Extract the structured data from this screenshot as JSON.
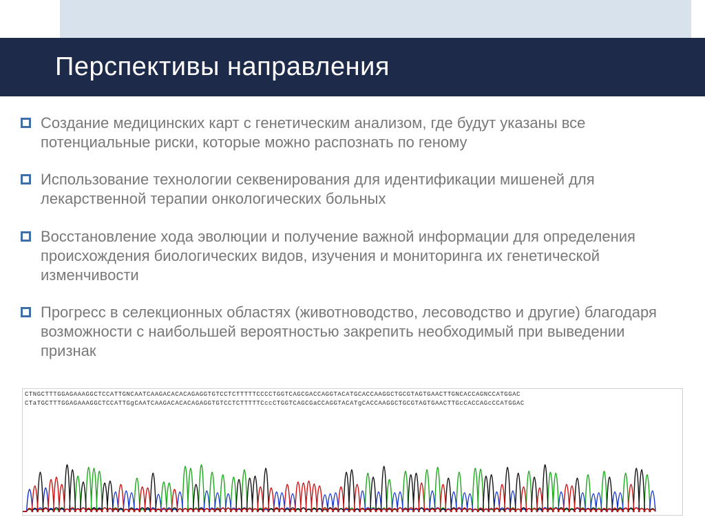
{
  "title": "Перспективы направления",
  "bullets": [
    "Создание медицинских карт с генетическим анализом, где будут указаны все потенциальные риски, которые можно распознать по геному",
    "Использование технологии секвенирования для идентификации мишеней для лекарственной терапии онкологических больных",
    "Восстановление хода эволюции и получение важной информации для определения происхождения биологических видов, изучения и мониторинга их генетической изменчивости",
    "Прогресс в селекционных областях (животноводство, лесоводство и другие) благодаря возможности с наибольшей вероятностью закрепить необходимый при выведении признак"
  ],
  "chromatogram": {
    "seq_line1": "CTNGCTTTGGAGAAAGGCTCCATTGNCAATCAAGACACACAGAGGTGTCCTCTTTTTCCCCTGGTCAGCGACCAGGTACATGCACCAAGGCTGCGTAGTGAACTTGNCACCAGNCCATGGAC",
    "seq_line2": "CTaTGCTTTGGAGAAAGGCTCCATTGgCAATCAAGACACACAGAGGTGTCCTCTTTTTCccCTGGTCAGCGaCCAGGTACATgCACCAAGGCTGCGTAGTGAACTTGcCACCAGcCCATGGAC",
    "trace_colors": {
      "A": "#1aa81a",
      "C": "#1030d0",
      "G": "#111111",
      "T": "#d01010"
    },
    "background": "#ffffff",
    "border_color": "#cfcfcf",
    "peaks": [
      {
        "b": "C",
        "h": 0.45
      },
      {
        "b": "T",
        "h": 0.52
      },
      {
        "b": "G",
        "h": 0.8
      },
      {
        "b": "C",
        "h": 0.48
      },
      {
        "b": "T",
        "h": 0.65
      },
      {
        "b": "T",
        "h": 0.7
      },
      {
        "b": "T",
        "h": 0.55
      },
      {
        "b": "G",
        "h": 0.95
      },
      {
        "b": "G",
        "h": 0.85
      },
      {
        "b": "A",
        "h": 0.72
      },
      {
        "b": "G",
        "h": 0.6
      },
      {
        "b": "A",
        "h": 0.9
      },
      {
        "b": "A",
        "h": 0.88
      },
      {
        "b": "A",
        "h": 0.82
      },
      {
        "b": "G",
        "h": 0.58
      },
      {
        "b": "G",
        "h": 0.62
      },
      {
        "b": "C",
        "h": 0.4
      },
      {
        "b": "T",
        "h": 0.55
      },
      {
        "b": "C",
        "h": 0.42
      },
      {
        "b": "C",
        "h": 0.38
      },
      {
        "b": "A",
        "h": 0.68
      },
      {
        "b": "T",
        "h": 0.5
      },
      {
        "b": "T",
        "h": 0.48
      },
      {
        "b": "G",
        "h": 0.78
      },
      {
        "b": "C",
        "h": 0.35
      },
      {
        "b": "A",
        "h": 0.6
      },
      {
        "b": "A",
        "h": 0.58
      },
      {
        "b": "T",
        "h": 0.45
      },
      {
        "b": "C",
        "h": 0.4
      },
      {
        "b": "A",
        "h": 0.92
      },
      {
        "b": "A",
        "h": 0.88
      },
      {
        "b": "G",
        "h": 0.55
      },
      {
        "b": "A",
        "h": 0.95
      },
      {
        "b": "C",
        "h": 0.42
      },
      {
        "b": "A",
        "h": 0.8
      },
      {
        "b": "C",
        "h": 0.38
      },
      {
        "b": "A",
        "h": 0.75
      },
      {
        "b": "C",
        "h": 0.36
      },
      {
        "b": "A",
        "h": 0.7
      },
      {
        "b": "G",
        "h": 0.65
      },
      {
        "b": "A",
        "h": 0.85
      },
      {
        "b": "G",
        "h": 0.68
      },
      {
        "b": "G",
        "h": 0.72
      },
      {
        "b": "T",
        "h": 0.5
      },
      {
        "b": "G",
        "h": 0.88
      },
      {
        "b": "T",
        "h": 0.48
      },
      {
        "b": "C",
        "h": 0.4
      },
      {
        "b": "C",
        "h": 0.38
      },
      {
        "b": "T",
        "h": 0.55
      },
      {
        "b": "C",
        "h": 0.36
      },
      {
        "b": "T",
        "h": 0.6
      },
      {
        "b": "T",
        "h": 0.58
      },
      {
        "b": "T",
        "h": 0.62
      },
      {
        "b": "T",
        "h": 0.56
      },
      {
        "b": "T",
        "h": 0.52
      },
      {
        "b": "C",
        "h": 0.34
      },
      {
        "b": "C",
        "h": 0.36
      },
      {
        "b": "C",
        "h": 0.38
      },
      {
        "b": "T",
        "h": 0.5
      },
      {
        "b": "G",
        "h": 0.8
      },
      {
        "b": "G",
        "h": 0.85
      },
      {
        "b": "T",
        "h": 0.55
      },
      {
        "b": "C",
        "h": 0.42
      },
      {
        "b": "A",
        "h": 0.78
      },
      {
        "b": "G",
        "h": 0.7
      },
      {
        "b": "C",
        "h": 0.4
      },
      {
        "b": "G",
        "h": 0.92
      },
      {
        "b": "A",
        "h": 0.65
      },
      {
        "b": "C",
        "h": 0.38
      },
      {
        "b": "C",
        "h": 0.4
      },
      {
        "b": "A",
        "h": 0.82
      },
      {
        "b": "G",
        "h": 0.75
      },
      {
        "b": "G",
        "h": 0.78
      },
      {
        "b": "T",
        "h": 0.58
      },
      {
        "b": "A",
        "h": 0.85
      },
      {
        "b": "C",
        "h": 0.42
      },
      {
        "b": "A",
        "h": 0.9
      },
      {
        "b": "T",
        "h": 0.55
      },
      {
        "b": "G",
        "h": 0.68
      },
      {
        "b": "C",
        "h": 0.4
      },
      {
        "b": "A",
        "h": 0.8
      },
      {
        "b": "C",
        "h": 0.38
      },
      {
        "b": "C",
        "h": 0.36
      },
      {
        "b": "A",
        "h": 0.88
      },
      {
        "b": "A",
        "h": 0.86
      },
      {
        "b": "G",
        "h": 0.72
      },
      {
        "b": "G",
        "h": 0.75
      },
      {
        "b": "C",
        "h": 0.4
      },
      {
        "b": "T",
        "h": 0.55
      },
      {
        "b": "G",
        "h": 0.9
      },
      {
        "b": "C",
        "h": 0.42
      },
      {
        "b": "G",
        "h": 0.78
      },
      {
        "b": "T",
        "h": 0.5
      },
      {
        "b": "A",
        "h": 0.82
      },
      {
        "b": "G",
        "h": 0.7
      },
      {
        "b": "T",
        "h": 0.48
      },
      {
        "b": "G",
        "h": 0.95
      },
      {
        "b": "A",
        "h": 0.8
      },
      {
        "b": "A",
        "h": 0.78
      },
      {
        "b": "C",
        "h": 0.4
      },
      {
        "b": "T",
        "h": 0.55
      },
      {
        "b": "T",
        "h": 0.52
      },
      {
        "b": "G",
        "h": 0.68
      },
      {
        "b": "C",
        "h": 0.38
      },
      {
        "b": "A",
        "h": 0.75
      },
      {
        "b": "C",
        "h": 0.36
      },
      {
        "b": "C",
        "h": 0.38
      },
      {
        "b": "A",
        "h": 0.82
      },
      {
        "b": "G",
        "h": 0.7
      },
      {
        "b": "C",
        "h": 0.4
      },
      {
        "b": "C",
        "h": 0.38
      },
      {
        "b": "A",
        "h": 0.78
      },
      {
        "b": "T",
        "h": 0.55
      },
      {
        "b": "G",
        "h": 0.88
      },
      {
        "b": "G",
        "h": 0.85
      },
      {
        "b": "A",
        "h": 0.75
      },
      {
        "b": "C",
        "h": 0.42
      }
    ],
    "peak_width": 7.8,
    "stroke_width": 1.4
  },
  "colors": {
    "top_band": "#d7e2ed",
    "title_bg": "#1e2a4a",
    "title_text": "#ffffff",
    "body_text": "#787878",
    "bullet_border": "#3f6fa8"
  }
}
